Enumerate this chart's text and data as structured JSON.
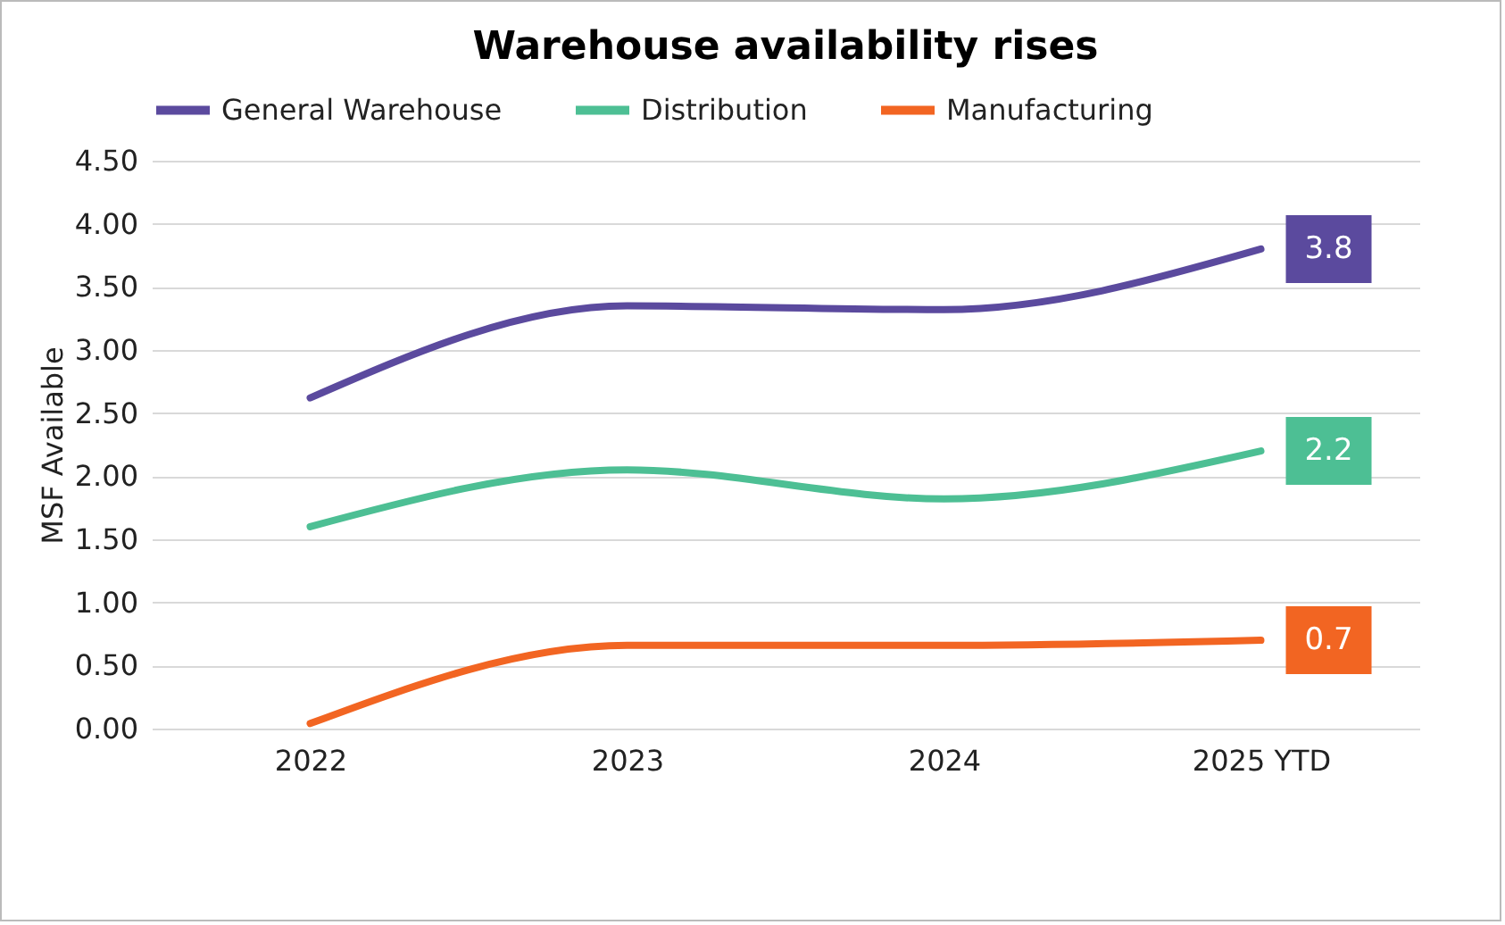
{
  "chart_data": {
    "type": "line",
    "title": "Warehouse availability rises",
    "ylabel": "MSF Available",
    "categories": [
      "2022",
      "2023",
      "2024",
      "2025 YTD"
    ],
    "series": [
      {
        "name": "General Warehouse",
        "color": "#5b4a9e",
        "values": [
          2.62,
          3.35,
          3.32,
          3.8
        ],
        "value_labels": [
          null,
          null,
          null,
          "3.8"
        ]
      },
      {
        "name": "Distribution",
        "color": "#4dbf94",
        "values": [
          1.6,
          2.05,
          1.82,
          2.2
        ],
        "value_labels": [
          null,
          null,
          null,
          "2.2"
        ]
      },
      {
        "name": "Manufacturing",
        "color": "#f26522",
        "values": [
          0.04,
          0.66,
          0.66,
          0.7
        ],
        "value_labels": [
          null,
          null,
          null,
          "0.7"
        ]
      }
    ],
    "ylim": [
      0,
      4.5
    ],
    "yticks": [
      {
        "value": 0,
        "label": "0.00"
      },
      {
        "value": 0.5,
        "label": "0.50"
      },
      {
        "value": 1,
        "label": "1.00"
      },
      {
        "value": 1.5,
        "label": "1.50"
      },
      {
        "value": 2,
        "label": "2.00"
      },
      {
        "value": 2.5,
        "label": "2.50"
      },
      {
        "value": 3,
        "label": "3.00"
      },
      {
        "value": 3.5,
        "label": "3.50"
      },
      {
        "value": 4,
        "label": "4.00"
      },
      {
        "value": 4.5,
        "label": "4.50"
      }
    ],
    "grid": "y",
    "legend": "top",
    "marker": "none",
    "line_style": "solid"
  }
}
